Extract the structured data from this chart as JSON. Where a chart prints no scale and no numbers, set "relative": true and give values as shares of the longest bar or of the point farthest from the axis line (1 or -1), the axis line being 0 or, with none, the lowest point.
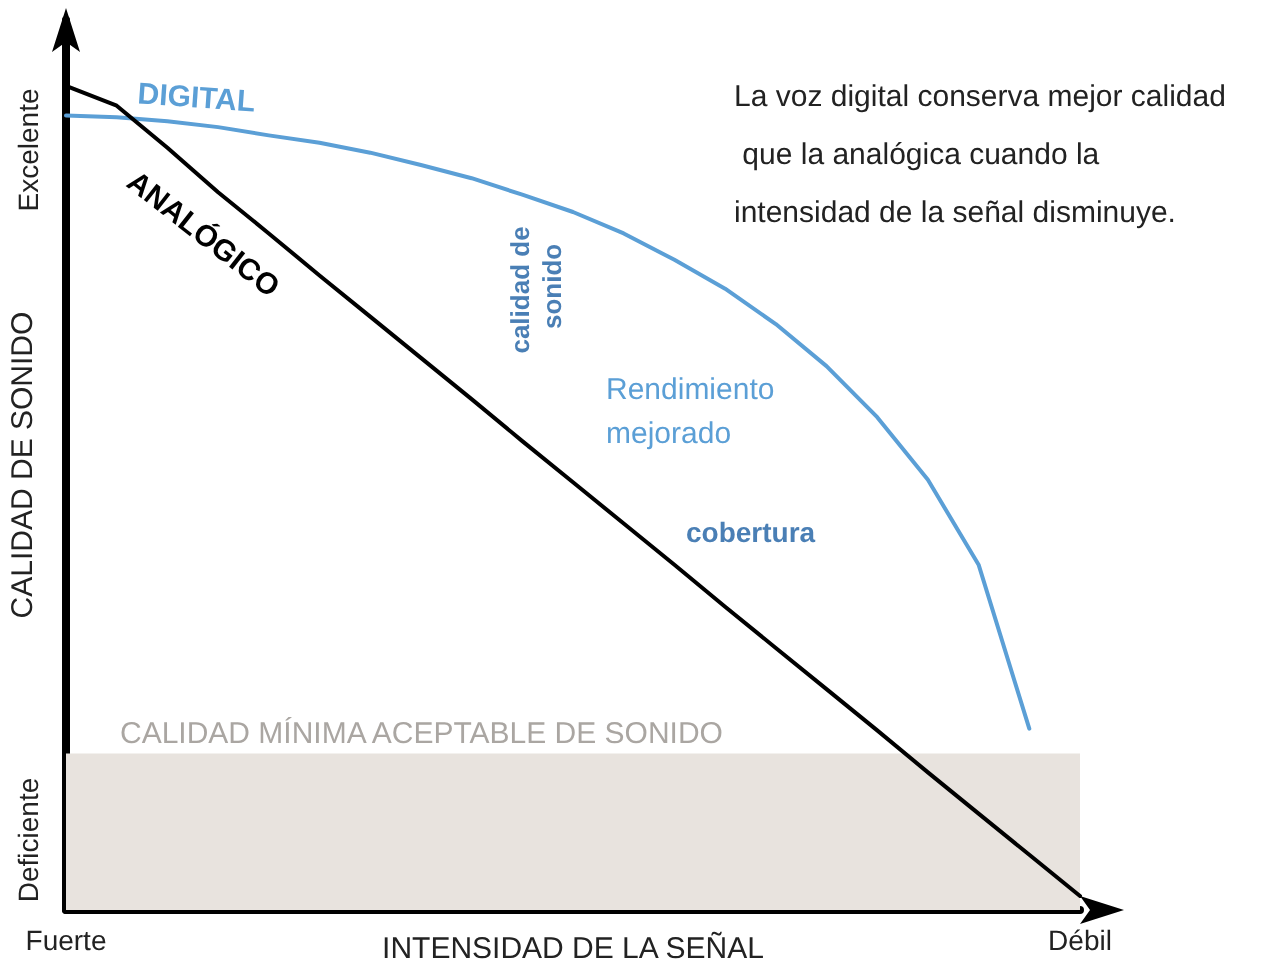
{
  "chart_data": {
    "type": "line",
    "relative": true,
    "categories": [
      "Fuerte",
      null,
      null,
      null,
      null,
      null,
      null,
      null,
      null,
      null,
      null,
      null,
      null,
      null,
      null,
      null,
      null,
      null,
      null,
      null,
      "Débil"
    ],
    "xlabel": "INTENSIDAD DE LA SEÑAL",
    "ylabel": "CALIDAD DE SONIDO",
    "series": [
      {
        "name": "DIGITAL",
        "color": "#5b9fd6",
        "values": [
          0.964,
          0.962,
          0.957,
          0.95,
          0.94,
          0.931,
          0.919,
          0.904,
          0.888,
          0.868,
          0.847,
          0.821,
          0.789,
          0.754,
          0.711,
          0.66,
          0.598,
          0.522,
          0.419,
          0.22,
          null
        ]
      },
      {
        "name": "ANALÓGICO",
        "color": "#000000",
        "values": [
          1.0,
          0.976,
          0.925,
          0.871,
          0.821,
          0.77,
          0.72,
          0.67,
          0.62,
          0.569,
          0.519,
          0.469,
          0.419,
          0.368,
          0.318,
          0.268,
          0.218,
          0.167,
          0.117,
          0.067,
          0.017
        ]
      }
    ],
    "bands": [
      {
        "axis": "y",
        "from": 0,
        "to": 0.19,
        "label": "CALIDAD MÍNIMA ACEPTABLE DE SONIDO",
        "color": "#e8e3de"
      }
    ],
    "annotations": [
      "La voz digital conserva mejor calidad que la analógica cuando la intensidad de la señal disminuye.",
      "calidad de sonido",
      "Rendimiento mejorado",
      "cobertura",
      "Excelente",
      "Deficiente"
    ],
    "marker": "none",
    "grid": false,
    "legend": false
  }
}
